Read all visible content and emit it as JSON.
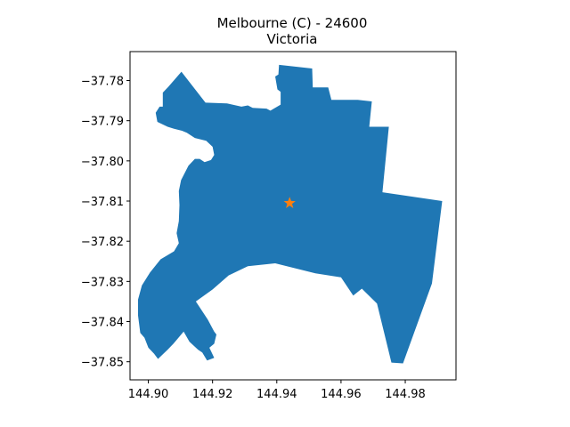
{
  "chart_data": {
    "type": "map",
    "title_line1": "Melbourne (C) - 24600",
    "title_line2": "Victoria",
    "xlabel": "",
    "ylabel": "",
    "xlim": [
      144.8943,
      144.9958
    ],
    "ylim": [
      -37.8545,
      -37.7728
    ],
    "x_ticks": [
      {
        "value": 144.9,
        "label": "144.90"
      },
      {
        "value": 144.92,
        "label": "144.92"
      },
      {
        "value": 144.94,
        "label": "144.94"
      },
      {
        "value": 144.96,
        "label": "144.96"
      },
      {
        "value": 144.98,
        "label": "144.98"
      }
    ],
    "y_ticks": [
      {
        "value": -37.78,
        "label": "−37.78"
      },
      {
        "value": -37.79,
        "label": "−37.79"
      },
      {
        "value": -37.8,
        "label": "−37.80"
      },
      {
        "value": -37.81,
        "label": "−37.81"
      },
      {
        "value": -37.82,
        "label": "−37.82"
      },
      {
        "value": -37.83,
        "label": "−37.83"
      },
      {
        "value": -37.84,
        "label": "−37.84"
      },
      {
        "value": -37.85,
        "label": "−37.85"
      }
    ],
    "grid": false,
    "region_color": "#1f77b4",
    "marker": {
      "lon": 144.944,
      "lat": -37.8105,
      "shape": "star",
      "color": "#ff7f0e"
    },
    "boundary": [
      [
        144.9407,
        -37.7761
      ],
      [
        144.951,
        -37.777
      ],
      [
        144.9512,
        -37.7817
      ],
      [
        144.956,
        -37.7817
      ],
      [
        144.957,
        -37.7848
      ],
      [
        144.9652,
        -37.7848
      ],
      [
        144.9696,
        -37.7852
      ],
      [
        144.9688,
        -37.7915
      ],
      [
        144.9749,
        -37.7915
      ],
      [
        144.9729,
        -37.8078
      ],
      [
        144.9915,
        -37.81
      ],
      [
        144.9883,
        -37.8305
      ],
      [
        144.9793,
        -37.8504
      ],
      [
        144.9757,
        -37.8502
      ],
      [
        144.9712,
        -37.8355
      ],
      [
        144.9665,
        -37.8318
      ],
      [
        144.9638,
        -37.8335
      ],
      [
        144.96,
        -37.829
      ],
      [
        144.952,
        -37.828
      ],
      [
        144.9395,
        -37.8255
      ],
      [
        144.931,
        -37.8262
      ],
      [
        144.925,
        -37.8285
      ],
      [
        144.92,
        -37.832
      ],
      [
        144.9148,
        -37.835
      ],
      [
        144.9185,
        -37.8395
      ],
      [
        144.9205,
        -37.8425
      ],
      [
        144.9212,
        -37.8432
      ],
      [
        144.9205,
        -37.8455
      ],
      [
        144.919,
        -37.8465
      ],
      [
        144.9205,
        -37.849
      ],
      [
        144.9183,
        -37.8497
      ],
      [
        144.9168,
        -37.8477
      ],
      [
        144.9155,
        -37.847
      ],
      [
        144.9128,
        -37.845
      ],
      [
        144.911,
        -37.8425
      ],
      [
        144.9078,
        -37.8455
      ],
      [
        144.906,
        -37.847
      ],
      [
        144.903,
        -37.8493
      ],
      [
        144.9018,
        -37.848
      ],
      [
        144.9,
        -37.8465
      ],
      [
        144.8988,
        -37.844
      ],
      [
        144.8975,
        -37.8428
      ],
      [
        144.8968,
        -37.8385
      ],
      [
        144.8968,
        -37.8345
      ],
      [
        144.898,
        -37.831
      ],
      [
        144.9005,
        -37.8278
      ],
      [
        144.9038,
        -37.8245
      ],
      [
        144.908,
        -37.8225
      ],
      [
        144.9095,
        -37.8205
      ],
      [
        144.9088,
        -37.818
      ],
      [
        144.9095,
        -37.815
      ],
      [
        144.9097,
        -37.811
      ],
      [
        144.9095,
        -37.8075
      ],
      [
        144.9102,
        -37.8048
      ],
      [
        144.9125,
        -37.8012
      ],
      [
        144.9145,
        -37.7995
      ],
      [
        144.916,
        -37.7995
      ],
      [
        144.9175,
        -37.8003
      ],
      [
        144.9195,
        -37.7998
      ],
      [
        144.9205,
        -37.7985
      ],
      [
        144.92,
        -37.7965
      ],
      [
        144.918,
        -37.795
      ],
      [
        144.9145,
        -37.7943
      ],
      [
        144.912,
        -37.793
      ],
      [
        144.9105,
        -37.7925
      ],
      [
        144.908,
        -37.792
      ],
      [
        144.906,
        -37.7915
      ],
      [
        144.9028,
        -37.7903
      ],
      [
        144.9023,
        -37.788
      ],
      [
        144.9035,
        -37.7865
      ],
      [
        144.9045,
        -37.7865
      ],
      [
        144.9045,
        -37.783
      ],
      [
        144.9063,
        -37.7815
      ],
      [
        144.9103,
        -37.7778
      ],
      [
        144.9178,
        -37.7855
      ],
      [
        144.9245,
        -37.7857
      ],
      [
        144.929,
        -37.7865
      ],
      [
        144.931,
        -37.7862
      ],
      [
        144.9325,
        -37.7868
      ],
      [
        144.9368,
        -37.787
      ],
      [
        144.938,
        -37.7875
      ],
      [
        144.9412,
        -37.786
      ],
      [
        144.9412,
        -37.7828
      ],
      [
        144.9402,
        -37.7822
      ],
      [
        144.9395,
        -37.779
      ],
      [
        144.9405,
        -37.7785
      ]
    ]
  }
}
